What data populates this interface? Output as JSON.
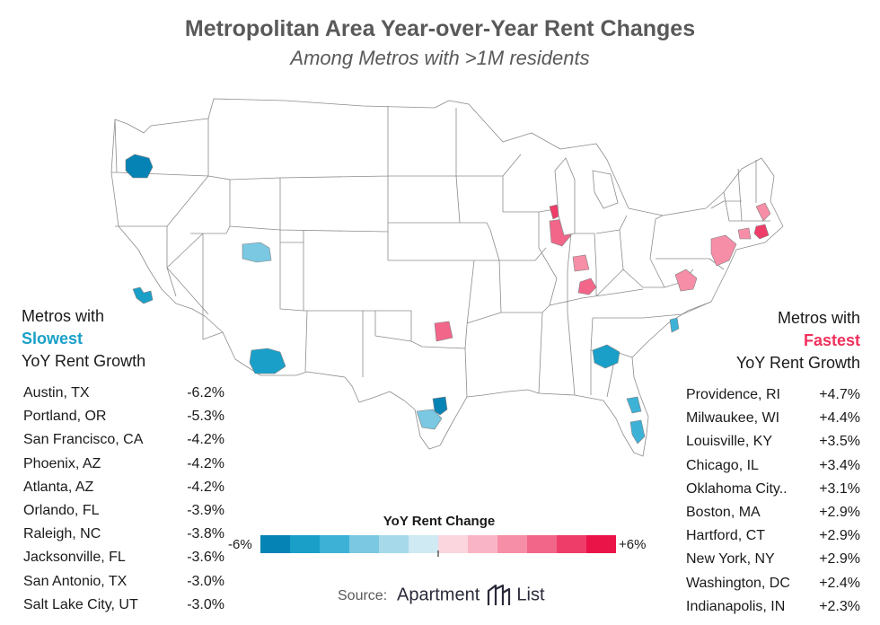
{
  "title": "Metropolitan Area Year-over-Year Rent Changes",
  "subtitle": "Among Metros with >1M residents",
  "slowest": {
    "head_line1": "Metros with",
    "head_accent": "Slowest",
    "head_line3": "YoY Rent Growth",
    "accent_color": "#1aa0c8",
    "rows": [
      {
        "name": "Austin, TX",
        "value": "-6.2%"
      },
      {
        "name": "Portland, OR",
        "value": "-5.3%"
      },
      {
        "name": "San Francisco, CA",
        "value": "-4.2%"
      },
      {
        "name": "Phoenix, AZ",
        "value": "-4.2%"
      },
      {
        "name": "Atlanta, AZ",
        "value": "-4.2%"
      },
      {
        "name": "Orlando, FL",
        "value": "-3.9%"
      },
      {
        "name": "Raleigh, NC",
        "value": "-3.8%"
      },
      {
        "name": "Jacksonville, FL",
        "value": "-3.6%"
      },
      {
        "name": "San Antonio, TX",
        "value": "-3.0%"
      },
      {
        "name": "Salt Lake City, UT",
        "value": "-3.0%"
      }
    ]
  },
  "fastest": {
    "head_line1": "Metros with",
    "head_accent": "Fastest",
    "head_line3": "YoY Rent Growth",
    "accent_color": "#f0305c",
    "rows": [
      {
        "name": "Providence, RI",
        "value": "+4.7%"
      },
      {
        "name": "Milwaukee, WI",
        "value": "+4.4%"
      },
      {
        "name": "Louisville, KY",
        "value": "+3.5%"
      },
      {
        "name": "Chicago, IL",
        "value": "+3.4%"
      },
      {
        "name": "Oklahoma City..",
        "value": "+3.1%"
      },
      {
        "name": "Boston, MA",
        "value": "+2.9%"
      },
      {
        "name": "Hartford, CT",
        "value": "+2.9%"
      },
      {
        "name": "New York, NY",
        "value": "+2.9%"
      },
      {
        "name": "Washington, DC",
        "value": "+2.4%"
      },
      {
        "name": "Indianapolis, IN",
        "value": "+2.3%"
      }
    ]
  },
  "legend": {
    "title": "YoY Rent Change",
    "min_label": "-6%",
    "max_label": "+6%",
    "min": -6,
    "max": 6,
    "colors": [
      "#0683b5",
      "#1aa0c8",
      "#3db2d6",
      "#7ac8e2",
      "#a6d9ea",
      "#cfeaf3",
      "#fcd6df",
      "#f9b5c5",
      "#f78ea7",
      "#f2668a",
      "#ee3d69",
      "#eb1449"
    ]
  },
  "source": {
    "label": "Source:",
    "brand_left": "Apartment",
    "brand_right": "List"
  }
}
